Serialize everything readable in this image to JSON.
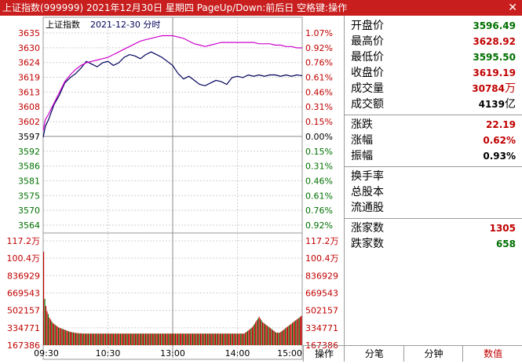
{
  "titlebar": {
    "title": "上证指数(999999)  2021年12月30日  星期四  PageUp/Down:前后日  空格键:操作",
    "close": "✕"
  },
  "chart_header": {
    "name": "上证指数",
    "date_label": "2021-12-30 分时"
  },
  "colors": {
    "up": "#c00000",
    "down": "#007000",
    "price": "#00005a",
    "avg": "#cc00cc",
    "grid": "#d0d0d0"
  },
  "chart_data": {
    "type": "line",
    "x_ticks": [
      "09:30",
      "10:30",
      "13:00",
      "14:00",
      "15:00"
    ],
    "price_ticks_left": [
      "3635",
      "3630",
      "3624",
      "3619",
      "3613",
      "3608",
      "3602",
      "3597",
      "3592",
      "3586",
      "3581",
      "3575",
      "3570",
      "3564"
    ],
    "pct_ticks_right": [
      "1.07%",
      "0.92%",
      "0.76%",
      "0.61%",
      "0.46%",
      "0.31%",
      "0.15%",
      "0.00%",
      "0.15%",
      "0.31%",
      "0.46%",
      "0.61%",
      "0.76%",
      "0.92%"
    ],
    "volume_ticks": [
      "117.2万",
      "100.4万",
      "836929",
      "669543",
      "502157",
      "334771",
      "167386"
    ],
    "prev_close": 3597.0,
    "price_range": [
      3564,
      3635
    ],
    "minutes": [
      0,
      2,
      5,
      10,
      15,
      20,
      25,
      30,
      35,
      40,
      45,
      50,
      55,
      60,
      65,
      70,
      75,
      80,
      85,
      90,
      95,
      100,
      105,
      110,
      115,
      120,
      125,
      130,
      135,
      140,
      145,
      150,
      155,
      160,
      165,
      170,
      175,
      180,
      185,
      190,
      195,
      200,
      205,
      210,
      215,
      220,
      225,
      230,
      235,
      240
    ],
    "series": [
      {
        "name": "price",
        "values": [
          3596.5,
          3600.5,
          3603.0,
          3608.5,
          3612.0,
          3616.5,
          3618.5,
          3620.0,
          3622.0,
          3624.5,
          3623.5,
          3622.5,
          3624.0,
          3624.5,
          3623.0,
          3624.0,
          3626.0,
          3627.0,
          3626.5,
          3625.5,
          3627.0,
          3628.0,
          3627.0,
          3626.0,
          3624.5,
          3623.0,
          3620.0,
          3618.0,
          3619.0,
          3617.5,
          3616.0,
          3615.5,
          3616.5,
          3617.5,
          3617.0,
          3616.0,
          3618.5,
          3619.0,
          3618.5,
          3619.5,
          3619.0,
          3619.5,
          3619.0,
          3619.5,
          3619.5,
          3619.0,
          3619.5,
          3619.0,
          3619.5,
          3619.2
        ]
      },
      {
        "name": "avg",
        "values": [
          3599.0,
          3603.0,
          3605.0,
          3609.0,
          3613.0,
          3617.0,
          3619.5,
          3621.5,
          3623.0,
          3624.0,
          3624.5,
          3625.0,
          3625.5,
          3626.0,
          3627.0,
          3628.0,
          3629.0,
          3630.0,
          3631.0,
          3632.0,
          3632.5,
          3633.0,
          3633.5,
          3634.0,
          3634.0,
          3634.0,
          3633.5,
          3633.0,
          3632.0,
          3631.0,
          3630.5,
          3630.0,
          3630.5,
          3631.0,
          3631.5,
          3631.5,
          3631.5,
          3631.5,
          3631.5,
          3631.5,
          3631.5,
          3631.0,
          3631.0,
          3631.0,
          3630.5,
          3630.5,
          3630.0,
          3630.0,
          3629.5,
          3629.5
        ]
      }
    ],
    "volume_max": 1172000,
    "volume": [
      1050000,
      520000,
      440000,
      380000,
      350000,
      310000,
      290000,
      270000,
      250000,
      240000,
      230000,
      220000,
      210000,
      200000,
      195000,
      190000,
      185000,
      180000,
      175000,
      170000,
      165000,
      160000,
      155000,
      150000,
      148000,
      145000,
      142000,
      140000,
      138000,
      136000,
      135000,
      134000,
      133000,
      132000,
      131000,
      130000,
      130000,
      130000,
      130000,
      130000,
      130000,
      130000,
      130000,
      130000,
      130000,
      130000,
      130000,
      130000,
      130000,
      130000,
      130000,
      130000,
      130000,
      130000,
      130000,
      130000,
      130000,
      130000,
      130000,
      130000,
      130000,
      130000,
      130000,
      130000,
      130000,
      130000,
      130000,
      130000,
      130000,
      130000,
      130000,
      130000,
      130000,
      130000,
      130000,
      130000,
      130000,
      130000,
      130000,
      130000,
      130000,
      130000,
      130000,
      130000,
      130000,
      130000,
      130000,
      130000,
      130000,
      130000,
      130000,
      130000,
      130000,
      130000,
      130000,
      130000,
      130000,
      130000,
      130000,
      130000,
      130000,
      130000,
      130000,
      130000,
      130000,
      130000,
      130000,
      130000,
      130000,
      130000,
      130000,
      130000,
      130000,
      130000,
      130000,
      130000,
      130000,
      130000,
      130000,
      130000,
      130000,
      130000,
      130000,
      130000,
      130000,
      130000,
      130000,
      130000,
      130000,
      130000,
      130000,
      130000,
      130000,
      130000,
      130000,
      130000,
      130000,
      130000,
      130000,
      130000,
      130000,
      130000,
      130000,
      130000,
      130000,
      130000,
      130000,
      130000,
      130000,
      130000,
      130000,
      130000,
      130000,
      130000,
      130000,
      130000,
      130000,
      130000,
      130000,
      130000,
      130000,
      130000,
      130000,
      130000,
      130000,
      130000,
      130000,
      130000,
      130000,
      130000,
      130000,
      130000,
      130000,
      130000,
      130000,
      130000,
      140000,
      150000,
      160000,
      170000,
      180000,
      190000,
      200000,
      220000,
      240000,
      260000,
      280000,
      300000,
      320000,
      300000,
      280000,
      260000,
      250000,
      240000,
      230000,
      220000,
      210000,
      200000,
      190000,
      180000,
      170000,
      160000,
      150000,
      140000,
      140000,
      140000,
      140000,
      150000,
      160000,
      170000,
      180000,
      190000,
      200000,
      210000,
      220000,
      230000,
      240000,
      250000,
      260000,
      270000,
      280000,
      290000,
      300000,
      310000,
      320000,
      330000
    ]
  },
  "quote": {
    "rows": [
      {
        "label": "开盘价",
        "value": "3596.49",
        "color": "#007000"
      },
      {
        "label": "最高价",
        "value": "3628.92",
        "color": "#c00000"
      },
      {
        "label": "最低价",
        "value": "3595.50",
        "color": "#007000"
      },
      {
        "label": "收盘价",
        "value": "3619.19",
        "color": "#c00000"
      },
      {
        "label": "成交量",
        "value": "30784",
        "unit": "万",
        "color": "#c00000"
      },
      {
        "label": "成交额",
        "value": "4139",
        "unit": "亿",
        "color": "#000000"
      }
    ],
    "change_rows": [
      {
        "label": "涨跌",
        "value": "22.19",
        "color": "#c00000"
      },
      {
        "label": "涨幅",
        "value": "0.62%",
        "color": "#c00000"
      },
      {
        "label": "振幅",
        "value": "0.93%",
        "color": "#000000"
      }
    ],
    "info_rows": [
      {
        "label": "换手率",
        "value": ""
      },
      {
        "label": "总股本",
        "value": ""
      },
      {
        "label": "流通股",
        "value": ""
      }
    ],
    "breadth_rows": [
      {
        "label": "涨家数",
        "value": "1305",
        "color": "#c00000"
      },
      {
        "label": "跌家数",
        "value": "658",
        "color": "#007000"
      }
    ]
  },
  "tabs": [
    {
      "label": "分笔",
      "active": false
    },
    {
      "label": "分钟",
      "active": false
    },
    {
      "label": "数值",
      "active": true
    }
  ],
  "action_button": "操作"
}
